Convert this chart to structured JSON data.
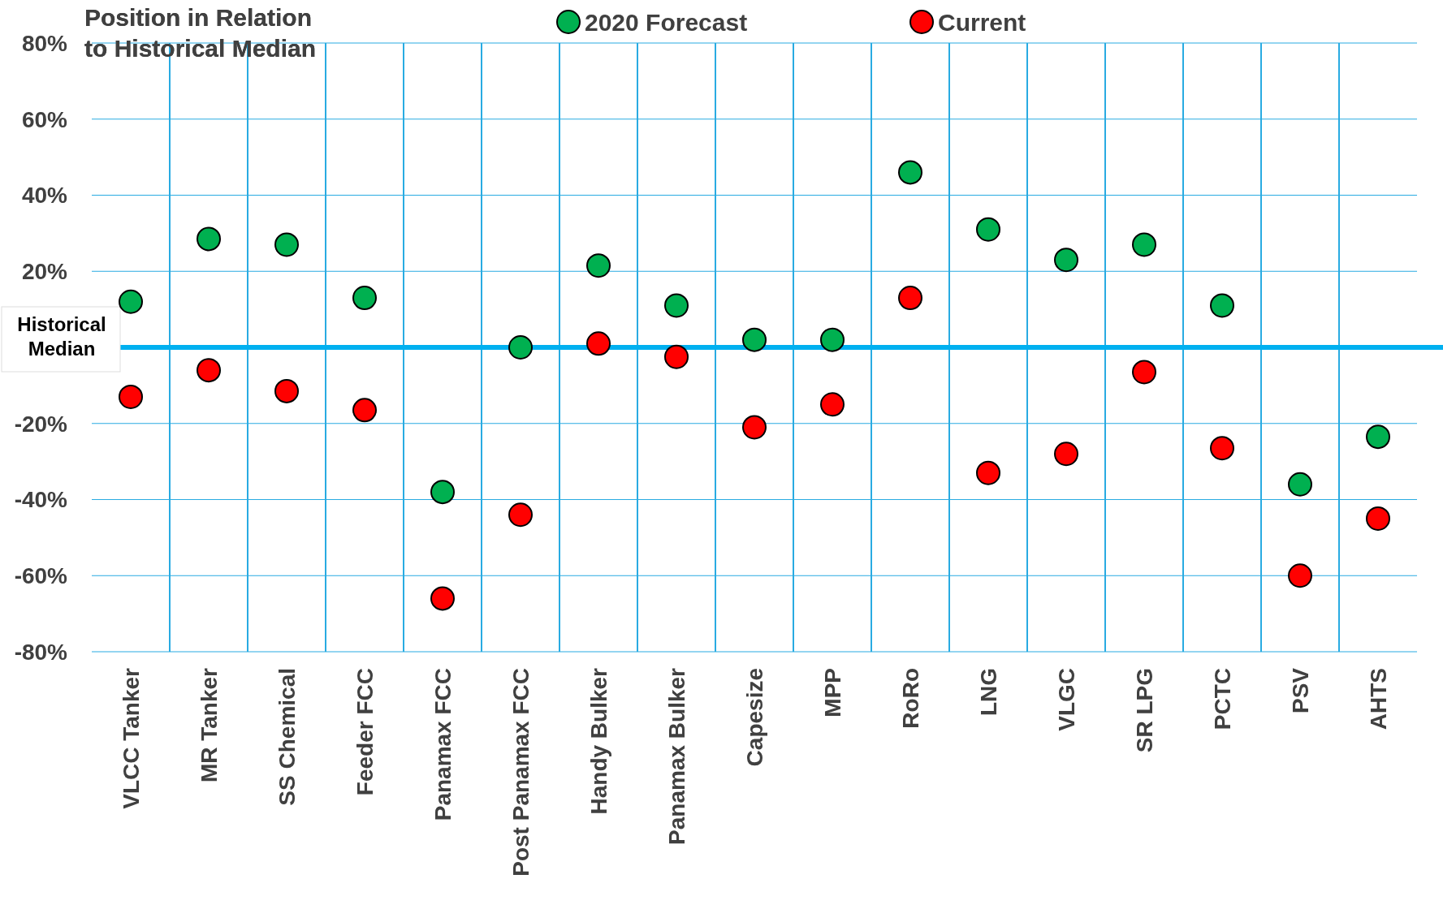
{
  "chart_data": {
    "type": "scatter",
    "title": "Position in Relation to Historical Median",
    "categories": [
      "VLCC Tanker",
      "MR Tanker",
      "SS Chemical",
      "Feeder FCC",
      "Panamax FCC",
      "Post Panamax FCC",
      "Handy Bulker",
      "Panamax Bulker",
      "Capesize",
      "MPP",
      "RoRo",
      "LNG",
      "VLGC",
      "SR LPG",
      "PCTC",
      "PSV",
      "AHTS"
    ],
    "series": [
      {
        "name": "2020 Forecast",
        "color": "#00b050",
        "values": [
          12,
          28.5,
          27,
          13,
          -38,
          0,
          21.5,
          11,
          2,
          2,
          46,
          31,
          23,
          27,
          11,
          -36,
          -23.5
        ]
      },
      {
        "name": "Current",
        "color": "#ff0000",
        "values": [
          -13,
          -6,
          -11.5,
          -16.5,
          -66,
          -44,
          1,
          -2.5,
          -21,
          -15,
          13,
          -33,
          -28,
          -6.5,
          -26.5,
          -60,
          -45
        ]
      }
    ],
    "ylim": [
      -80,
      80
    ],
    "yticks": [
      {
        "value": -80,
        "label": "-80%"
      },
      {
        "value": -60,
        "label": "-60%"
      },
      {
        "value": -40,
        "label": "-40%"
      },
      {
        "value": -20,
        "label": "-20%"
      },
      {
        "value": 0,
        "label": null
      },
      {
        "value": 20,
        "label": "20%"
      },
      {
        "value": 40,
        "label": "40%"
      },
      {
        "value": 60,
        "label": "60%"
      },
      {
        "value": 80,
        "label": "80%"
      }
    ],
    "ref_lines": [
      {
        "axis": "y",
        "value": 0,
        "label": "Historical Median",
        "color": "#00b0f0"
      }
    ],
    "grid": true,
    "legend": "top",
    "marker": "circle"
  }
}
